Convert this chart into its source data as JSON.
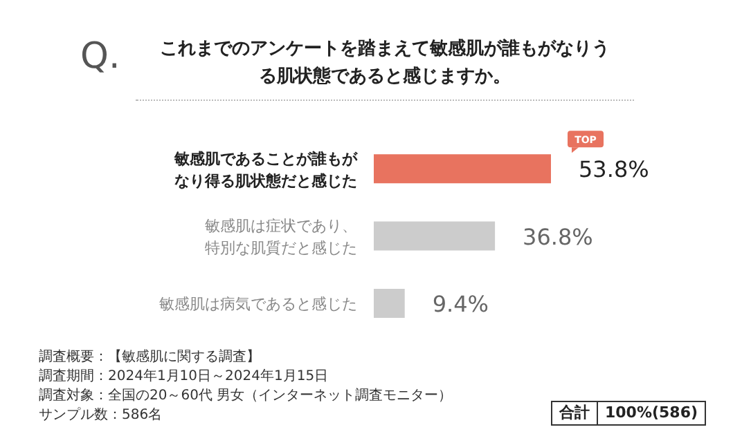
{
  "chart_data": {
    "type": "bar",
    "orientation": "horizontal",
    "title": "これまでのアンケートを踏まえて敏感肌が誰もがなりうる肌状態であると感じますか。",
    "categories": [
      "敏感肌であることが誰もがなり得る肌状態だと感じた",
      "敏感肌は症状であり、特別な肌質だと感じた",
      "敏感肌は病気であると感じた"
    ],
    "values": [
      53.8,
      36.8,
      9.4
    ],
    "colors": [
      "#e8735f",
      "#cccccc",
      "#cccccc"
    ],
    "value_labels": [
      "53.8%",
      "36.8%",
      "9.4%"
    ],
    "annotations": [
      "TOP",
      "Q.",
      "調査概要：【敏感肌に関する調査】",
      "調査期間：2024年1月10日～2024年1月15日",
      "調査対象：全国の20～60代 男女（インターネット調査モニター）",
      "サンプル数：586名",
      "合計",
      "100%(586)"
    ]
  }
}
